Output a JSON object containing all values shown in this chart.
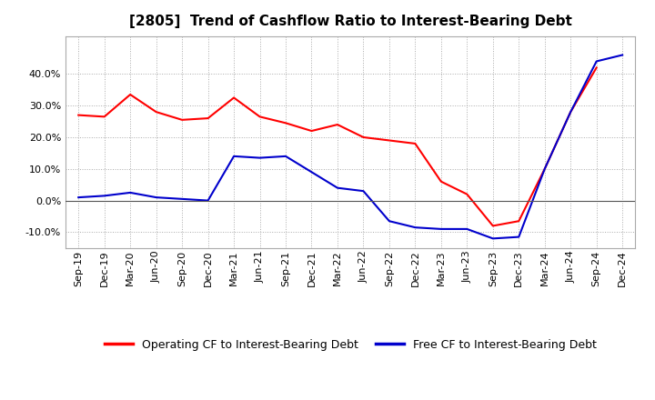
{
  "title": "[2805]  Trend of Cashflow Ratio to Interest-Bearing Debt",
  "x_labels": [
    "Sep-19",
    "Dec-19",
    "Mar-20",
    "Jun-20",
    "Sep-20",
    "Dec-20",
    "Mar-21",
    "Jun-21",
    "Sep-21",
    "Dec-21",
    "Mar-22",
    "Jun-22",
    "Sep-22",
    "Dec-22",
    "Mar-23",
    "Jun-23",
    "Sep-23",
    "Dec-23",
    "Mar-24",
    "Jun-24",
    "Sep-24",
    "Dec-24"
  ],
  "operating_cf": [
    0.27,
    0.265,
    0.335,
    0.28,
    0.255,
    0.26,
    0.325,
    0.265,
    0.245,
    0.22,
    0.24,
    0.2,
    0.19,
    0.18,
    0.06,
    0.02,
    -0.08,
    -0.065,
    0.1,
    0.28,
    0.42,
    null
  ],
  "free_cf": [
    0.01,
    0.015,
    0.025,
    0.01,
    0.005,
    0.0,
    0.14,
    0.135,
    0.14,
    0.09,
    0.04,
    0.03,
    -0.065,
    -0.085,
    -0.09,
    -0.09,
    -0.12,
    -0.115,
    0.1,
    0.28,
    0.44,
    0.46
  ],
  "ylim": [
    -0.15,
    0.52
  ],
  "yticks": [
    -0.1,
    0.0,
    0.1,
    0.2,
    0.3,
    0.4
  ],
  "operating_color": "#FF0000",
  "free_color": "#0000CC",
  "background_color": "#FFFFFF",
  "grid_color": "#AAAAAA",
  "legend_operating": "Operating CF to Interest-Bearing Debt",
  "legend_free": "Free CF to Interest-Bearing Debt",
  "title_fontsize": 11,
  "tick_fontsize": 8,
  "legend_fontsize": 9
}
